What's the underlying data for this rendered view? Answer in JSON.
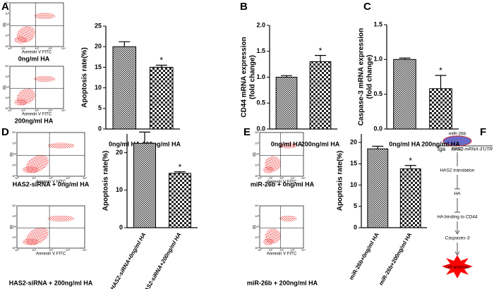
{
  "panel_labels": [
    "A",
    "B",
    "C",
    "D",
    "E",
    "F"
  ],
  "flow": {
    "y_label": "PI",
    "x_label": "Annexin V FITC",
    "ticks": [
      "10⁰",
      "10¹",
      "10²",
      "10³",
      "10⁴"
    ],
    "captions": [
      "0ng/ml HA",
      "200ng/ml HA",
      "HAS2-siRNA + 0ng/ml HA",
      "HAS2-siRNA + 200ng/ml HA",
      "miR-26b + 0ng/ml HA",
      "miR-26b + 200ng/ml HA"
    ]
  },
  "chart_data": [
    {
      "type": "bar",
      "ylabel": [
        "Apoptosis rate(%)"
      ],
      "categories": [
        "0ng/ml HA",
        "200ng/ml HA"
      ],
      "values": [
        20,
        15
      ],
      "errors": [
        1.2,
        0.5
      ],
      "annotation": "*",
      "ylim": [
        0,
        25
      ],
      "yticks": [
        0,
        5,
        10,
        15,
        20,
        25
      ]
    },
    {
      "type": "bar",
      "ylabel": [
        "CD44 mRNA expression",
        "(fold change)"
      ],
      "categories": [
        "0ng/ml HA",
        "200ng/ml HA"
      ],
      "values": [
        1.0,
        1.3
      ],
      "errors": [
        0.03,
        0.12
      ],
      "annotation": "*",
      "ylim": [
        0,
        2
      ],
      "yticks": [
        {
          "value": 0,
          "label": "0.0"
        },
        {
          "value": 0.5,
          "label": "0.5"
        },
        {
          "value": 1,
          "label": "1.0"
        },
        {
          "value": 1.5,
          "label": "1.5"
        },
        {
          "value": 2,
          "label": "2.0"
        }
      ]
    },
    {
      "type": "bar",
      "ylabel": [
        "Caspase-3 mRNA expression",
        "(fold change)"
      ],
      "categories": [
        "0ng/ml HA",
        "200ng/ml HA"
      ],
      "values": [
        1.0,
        0.58
      ],
      "errors": [
        0.02,
        0.19
      ],
      "annotation": "*",
      "ylim": [
        0,
        1.5
      ],
      "yticks": [
        {
          "value": 0,
          "label": "0.0"
        },
        {
          "value": 0.5,
          "label": "0.5"
        },
        {
          "value": 1,
          "label": "1.0"
        },
        {
          "value": 1.5,
          "label": "1.5"
        }
      ]
    },
    {
      "type": "bar",
      "ylabel": [
        "Apoptosis rate(%)"
      ],
      "categories": [
        "HAS2-siRNA+0ng/ml HA",
        "HAS2-siRNA+200ng/ml HA"
      ],
      "values": [
        22.5,
        14.5
      ],
      "errors": [
        3,
        0.4
      ],
      "annotation": "*",
      "ylim": [
        0,
        25
      ],
      "yticks": [
        0,
        10,
        20
      ],
      "rotate_labels": true
    },
    {
      "type": "bar",
      "ylabel": [
        "Apoptosis rate(%)"
      ],
      "categories": [
        "miR-26b+0ng/ml HA",
        "miR-26b+200ng/ml HA"
      ],
      "values": [
        18.5,
        13.8
      ],
      "errors": [
        0.6,
        0.8
      ],
      "annotation": "*",
      "ylim": [
        0,
        22
      ],
      "yticks": [
        0,
        5,
        10,
        15,
        20
      ],
      "rotate_labels": true
    }
  ],
  "diagram": {
    "mirna": "miR-26b",
    "risc": "RISC",
    "seed": "tga",
    "utr": "HAS2-mRNA-3'UTR",
    "steps": [
      "HAS2 translation",
      "HA",
      "HA binding to CD44",
      "Caspases-3"
    ],
    "outcome": "Cell apoptosis"
  }
}
